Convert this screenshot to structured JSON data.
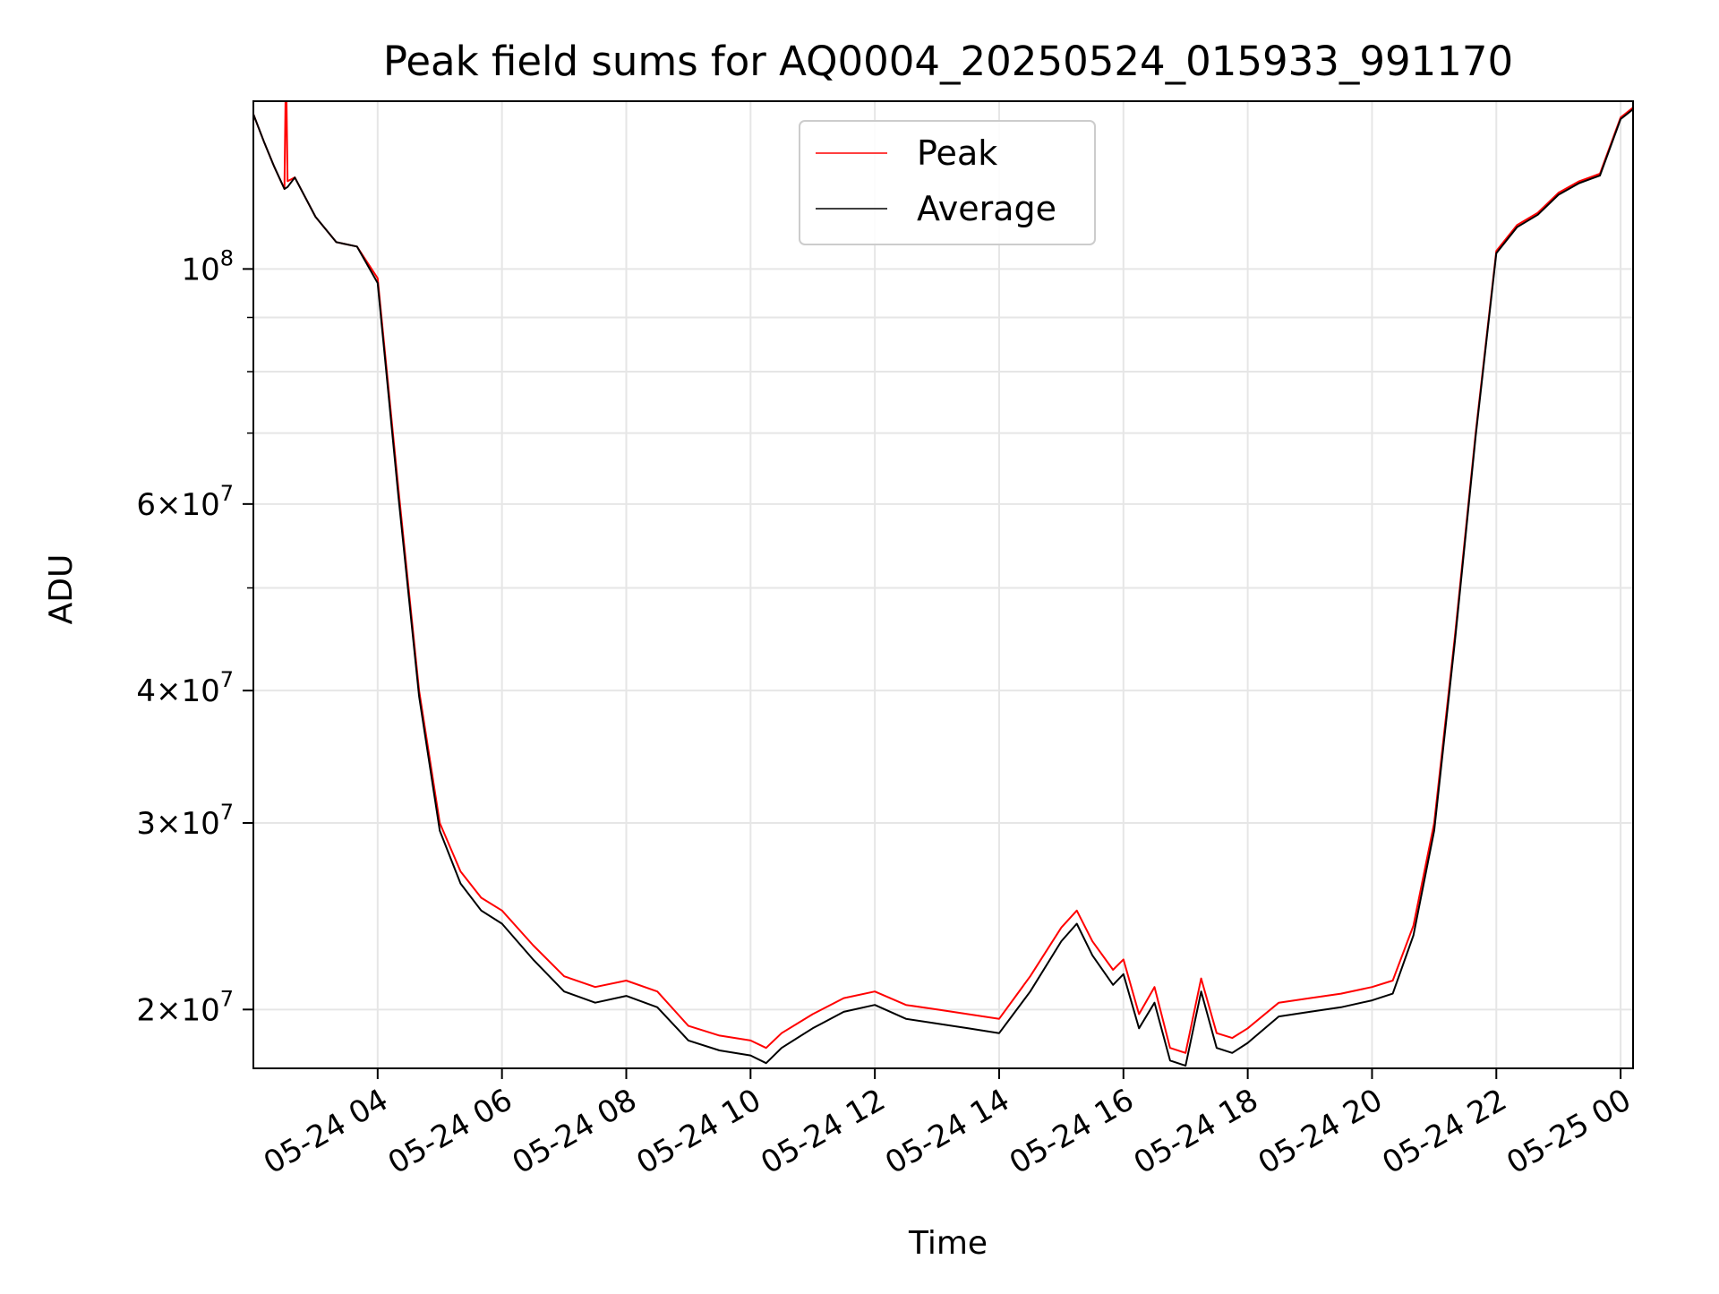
{
  "chart_data": {
    "type": "line",
    "title": "Peak field sums for AQ0004_20250524_015933_991170",
    "xlabel": "Time",
    "ylabel": "ADU",
    "yscale": "log",
    "ylim": [
      17600000,
      144000000
    ],
    "xlim": [
      "05-24 02:00",
      "05-25 00:12"
    ],
    "grid": true,
    "legend_placement": "upper center",
    "x_ticks": [
      {
        "value": "05-24 04:00",
        "label": "05-24 04"
      },
      {
        "value": "05-24 06:00",
        "label": "05-24 06"
      },
      {
        "value": "05-24 08:00",
        "label": "05-24 08"
      },
      {
        "value": "05-24 10:00",
        "label": "05-24 10"
      },
      {
        "value": "05-24 12:00",
        "label": "05-24 12"
      },
      {
        "value": "05-24 14:00",
        "label": "05-24 14"
      },
      {
        "value": "05-24 16:00",
        "label": "05-24 16"
      },
      {
        "value": "05-24 18:00",
        "label": "05-24 18"
      },
      {
        "value": "05-24 20:00",
        "label": "05-24 20"
      },
      {
        "value": "05-24 22:00",
        "label": "05-24 22"
      },
      {
        "value": "05-25 00:00",
        "label": "05-25 00"
      }
    ],
    "y_ticks": [
      {
        "value": 20000000,
        "base": "2×10",
        "exp": "7"
      },
      {
        "value": 30000000,
        "base": "3×10",
        "exp": "7"
      },
      {
        "value": 40000000,
        "base": "4×10",
        "exp": "7"
      },
      {
        "value": 60000000,
        "base": "6×10",
        "exp": "7"
      },
      {
        "value": 100000000,
        "base": "10",
        "exp": "8"
      }
    ],
    "y_minor_ticks": [
      50000000,
      70000000,
      80000000,
      90000000
    ],
    "series": [
      {
        "name": "Peak",
        "color": "#ff0000",
        "x": [
          "05-24 02:00",
          "05-24 02:10",
          "05-24 02:20",
          "05-24 02:30",
          "05-24 02:31",
          "05-24 02:32",
          "05-24 02:33",
          "05-24 02:40",
          "05-24 03:00",
          "05-24 03:20",
          "05-24 03:40",
          "05-24 04:00",
          "05-24 04:20",
          "05-24 04:40",
          "05-24 05:00",
          "05-24 05:20",
          "05-24 05:40",
          "05-24 06:00",
          "05-24 06:30",
          "05-24 07:00",
          "05-24 07:30",
          "05-24 08:00",
          "05-24 08:30",
          "05-24 09:00",
          "05-24 09:30",
          "05-24 10:00",
          "05-24 10:15",
          "05-24 10:30",
          "05-24 11:00",
          "05-24 11:30",
          "05-24 12:00",
          "05-24 12:30",
          "05-24 13:00",
          "05-24 13:30",
          "05-24 14:00",
          "05-24 14:30",
          "05-24 15:00",
          "05-24 15:15",
          "05-24 15:30",
          "05-24 15:50",
          "05-24 16:00",
          "05-24 16:15",
          "05-24 16:30",
          "05-24 16:45",
          "05-24 17:00",
          "05-24 17:15",
          "05-24 17:30",
          "05-24 17:45",
          "05-24 18:00",
          "05-24 18:30",
          "05-24 19:00",
          "05-24 19:30",
          "05-24 20:00",
          "05-24 20:20",
          "05-24 20:40",
          "05-24 21:00",
          "05-24 21:20",
          "05-24 21:40",
          "05-24 22:00",
          "05-24 22:20",
          "05-24 22:40",
          "05-24 23:00",
          "05-24 23:20",
          "05-24 23:40",
          "05-25 00:00",
          "05-25 00:12"
        ],
        "y": [
          140000000,
          132000000,
          125000000,
          119000000,
          144000000,
          144000000,
          121000000,
          122000000,
          112000000,
          106000000,
          105000000,
          98000000,
          62000000,
          40000000,
          30000000,
          27000000,
          25500000,
          24800000,
          23000000,
          21500000,
          21000000,
          21300000,
          20800000,
          19300000,
          18900000,
          18700000,
          18400000,
          19000000,
          19800000,
          20500000,
          20800000,
          20200000,
          20000000,
          19800000,
          19600000,
          21500000,
          23900000,
          24800000,
          23200000,
          21800000,
          22300000,
          19800000,
          21000000,
          18400000,
          18200000,
          21400000,
          19000000,
          18800000,
          19200000,
          20300000,
          20500000,
          20700000,
          21000000,
          21300000,
          24000000,
          30000000,
          45000000,
          70000000,
          104000000,
          110000000,
          113000000,
          118000000,
          121000000,
          123000000,
          139000000,
          142000000
        ]
      },
      {
        "name": "Average",
        "color": "#000000",
        "x": [
          "05-24 02:00",
          "05-24 02:10",
          "05-24 02:20",
          "05-24 02:30",
          "05-24 02:33",
          "05-24 02:40",
          "05-24 03:00",
          "05-24 03:20",
          "05-24 03:40",
          "05-24 04:00",
          "05-24 04:20",
          "05-24 04:40",
          "05-24 05:00",
          "05-24 05:20",
          "05-24 05:40",
          "05-24 06:00",
          "05-24 06:30",
          "05-24 07:00",
          "05-24 07:30",
          "05-24 08:00",
          "05-24 08:30",
          "05-24 09:00",
          "05-24 09:30",
          "05-24 10:00",
          "05-24 10:15",
          "05-24 10:30",
          "05-24 11:00",
          "05-24 11:30",
          "05-24 12:00",
          "05-24 12:30",
          "05-24 13:00",
          "05-24 13:30",
          "05-24 14:00",
          "05-24 14:30",
          "05-24 15:00",
          "05-24 15:15",
          "05-24 15:30",
          "05-24 15:50",
          "05-24 16:00",
          "05-24 16:15",
          "05-24 16:30",
          "05-24 16:45",
          "05-24 17:00",
          "05-24 17:15",
          "05-24 17:30",
          "05-24 17:45",
          "05-24 18:00",
          "05-24 18:30",
          "05-24 19:00",
          "05-24 19:30",
          "05-24 20:00",
          "05-24 20:20",
          "05-24 20:40",
          "05-24 21:00",
          "05-24 21:20",
          "05-24 21:40",
          "05-24 22:00",
          "05-24 22:20",
          "05-24 22:40",
          "05-24 23:00",
          "05-24 23:20",
          "05-24 23:40",
          "05-25 00:00",
          "05-25 00:12"
        ],
        "y": [
          140000000,
          132000000,
          125000000,
          119000000,
          119500000,
          122000000,
          112000000,
          106000000,
          105000000,
          97000000,
          61000000,
          39500000,
          29500000,
          26300000,
          24800000,
          24100000,
          22300000,
          20800000,
          20300000,
          20600000,
          20100000,
          18700000,
          18300000,
          18100000,
          17800000,
          18400000,
          19200000,
          19900000,
          20200000,
          19600000,
          19400000,
          19200000,
          19000000,
          20800000,
          23200000,
          24100000,
          22500000,
          21100000,
          21600000,
          19200000,
          20300000,
          17900000,
          17700000,
          20800000,
          18400000,
          18200000,
          18600000,
          19700000,
          19900000,
          20100000,
          20400000,
          20700000,
          23500000,
          29500000,
          44500000,
          69500000,
          103500000,
          109500000,
          112500000,
          117500000,
          120500000,
          122500000,
          138500000,
          141500000
        ]
      }
    ]
  }
}
